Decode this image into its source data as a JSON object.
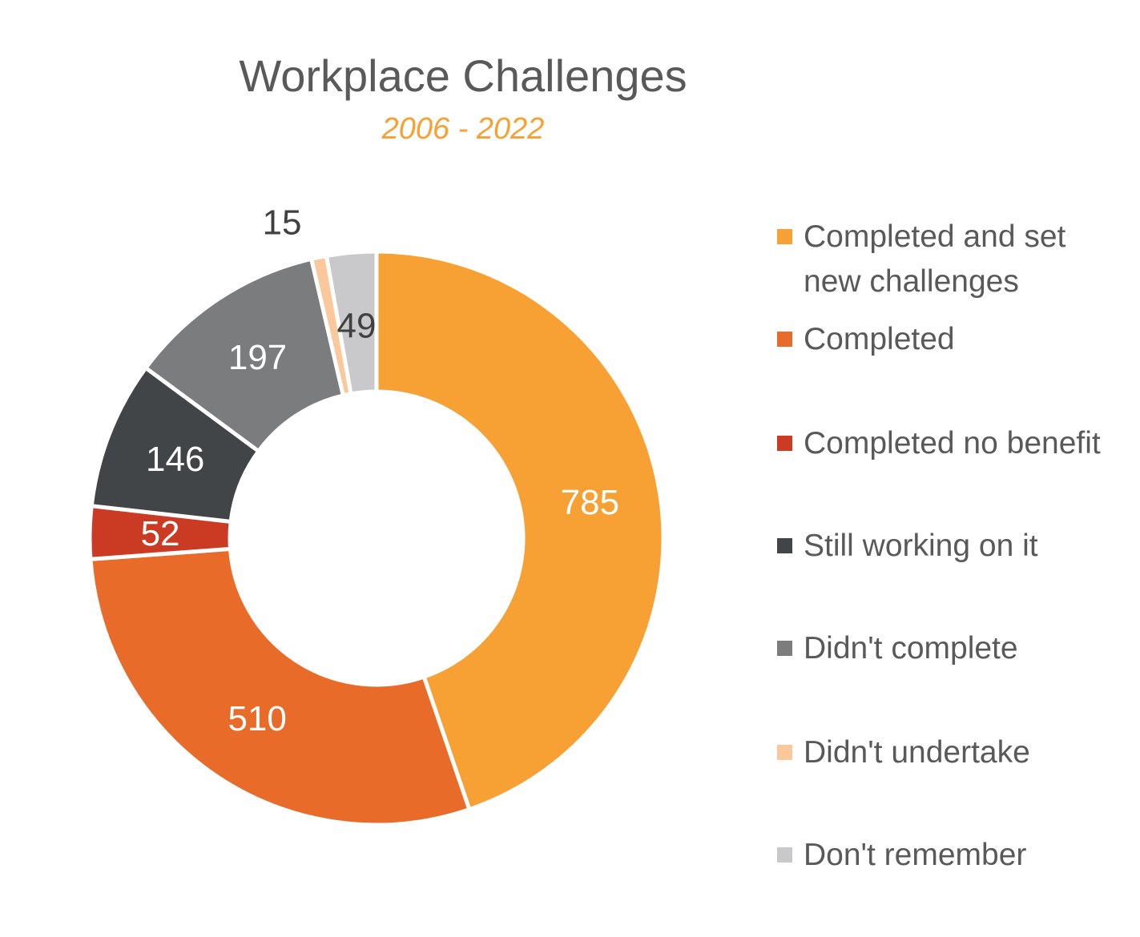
{
  "chart_data": {
    "type": "pie",
    "donut": true,
    "title": "Workplace Challenges",
    "subtitle": "2006 - 2022",
    "legend_position": "right",
    "slices": [
      {
        "label": "Completed and set new challenges",
        "value": 785,
        "color": "#F7A034",
        "label_color": "#FFFFFF"
      },
      {
        "label": "Completed",
        "value": 510,
        "color": "#E96B29",
        "label_color": "#FFFFFF"
      },
      {
        "label": "Completed no benefit",
        "value": 52,
        "color": "#CB3B24",
        "label_color": "#FFFFFF"
      },
      {
        "label": "Still working on it",
        "value": 146,
        "color": "#414548",
        "label_color": "#FFFFFF"
      },
      {
        "label": "Didn't complete",
        "value": 197,
        "color": "#7B7C7E",
        "label_color": "#FFFFFF"
      },
      {
        "label": "Didn't undertake",
        "value": 15,
        "color": "#FAC89A",
        "label_color": "#404040"
      },
      {
        "label": "Don't remember",
        "value": 49,
        "color": "#C9C9CB",
        "label_color": "#404040"
      }
    ]
  }
}
